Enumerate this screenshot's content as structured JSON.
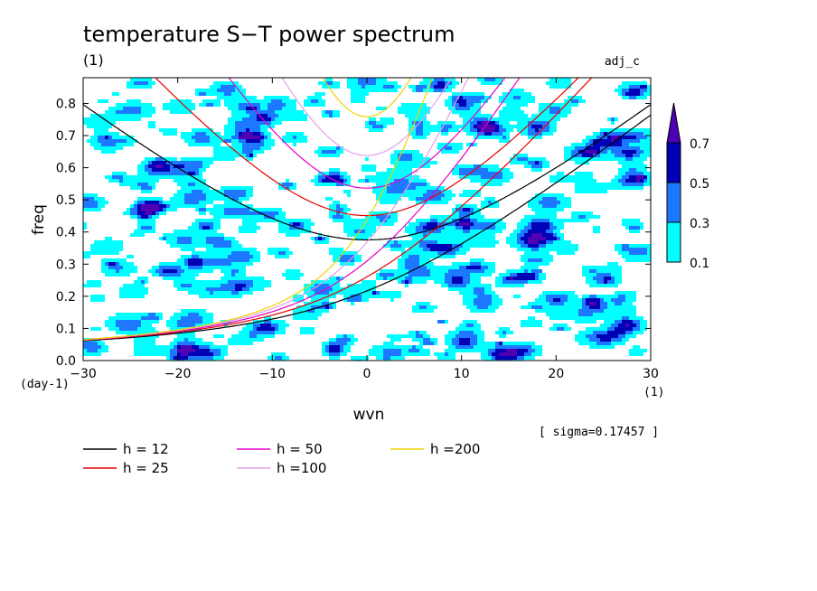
{
  "chart_data": {
    "type": "heatmap",
    "title": "temperature S−T power spectrum",
    "subtitle": "(1)",
    "case_label": "adj_c",
    "xlabel": "wvn",
    "ylabel": "freq",
    "x_unit": "(1)",
    "y_unit": "(day-1)",
    "xlim": [
      -30,
      30
    ],
    "ylim": [
      0,
      0.88
    ],
    "x_ticks": [
      "−30",
      "−20",
      "−10",
      "0",
      "10",
      "20",
      "30"
    ],
    "x_tick_values": [
      -30,
      -20,
      -10,
      0,
      10,
      20,
      30
    ],
    "y_ticks": [
      "0.0",
      "0.1",
      "0.2",
      "0.3",
      "0.4",
      "0.5",
      "0.6",
      "0.7",
      "0.8"
    ],
    "y_tick_values": [
      0,
      0.1,
      0.2,
      0.3,
      0.4,
      0.5,
      0.6,
      0.7,
      0.8
    ],
    "sigma_text": "[ sigma=0.17457 ]",
    "colorbar": {
      "levels": [
        "0.1",
        "0.3",
        "0.5",
        "0.7"
      ],
      "level_values": [
        0.1,
        0.3,
        0.5,
        0.7
      ],
      "colors": [
        "#00ffff",
        "#1e78ff",
        "#0000b4",
        "#5000b4"
      ],
      "extend": "max"
    },
    "contour_colors": [
      "#00ffff",
      "#1e78ff",
      "#0000b4",
      "#5000b4"
    ],
    "field_seed": 12345,
    "dispersion_curves": [
      {
        "name": "h = 12",
        "h": 12,
        "n": 1,
        "color": "#000000"
      },
      {
        "name": "h = 25",
        "h": 25,
        "n": 1,
        "color": "#e60000"
      },
      {
        "name": "h = 50",
        "h": 50,
        "n": 1,
        "color": "#e600c8"
      },
      {
        "name": "h =100",
        "h": 100,
        "n": 1,
        "color": "#e6a0e6"
      },
      {
        "name": "h =200",
        "h": 200,
        "n": 1,
        "color": "#f0d200"
      }
    ],
    "kelvin_like_curves": [
      {
        "name": "h = 12",
        "color": "#000000"
      },
      {
        "name": "h = 25",
        "color": "#e60000"
      },
      {
        "name": "h = 50",
        "color": "#e600c8"
      },
      {
        "name": "h =100",
        "color": "#e6a0e6"
      },
      {
        "name": "h =200",
        "color": "#f0d200"
      }
    ],
    "legend": [
      {
        "label": "h = 12",
        "color": "#000000"
      },
      {
        "label": "h = 25",
        "color": "#e60000"
      },
      {
        "label": "h = 50",
        "color": "#e600c8"
      },
      {
        "label": "h =100",
        "color": "#e6a0e6"
      },
      {
        "label": "h =200",
        "color": "#f0d200"
      }
    ],
    "legend_placement": "below"
  }
}
